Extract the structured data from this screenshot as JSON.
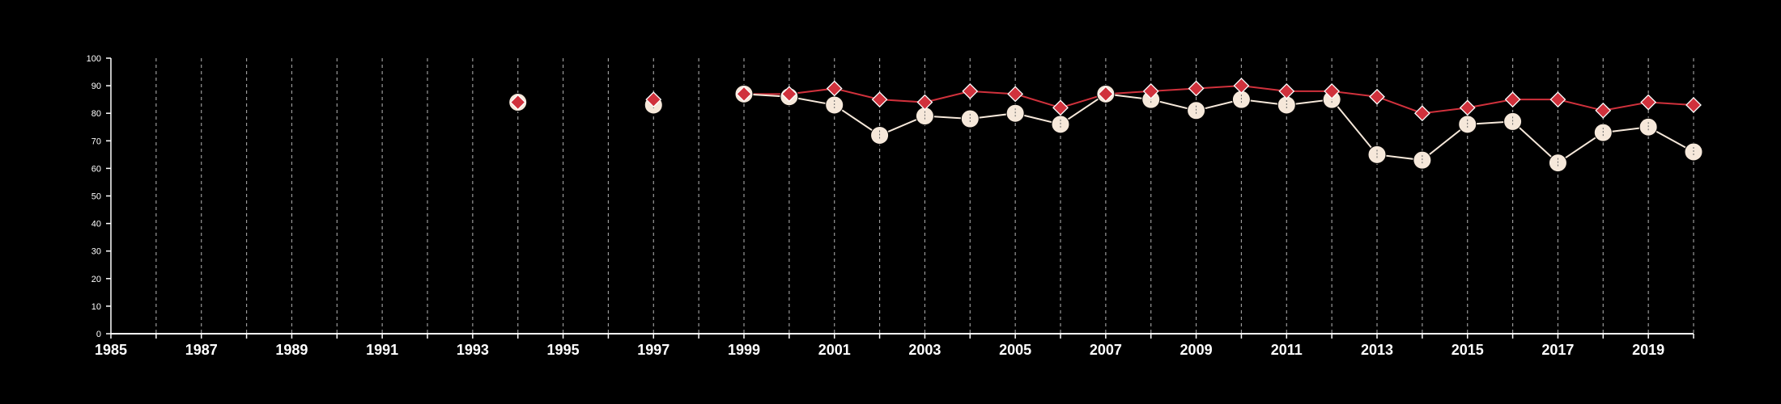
{
  "chart_data": {
    "type": "line",
    "title": "",
    "xlabel": "",
    "ylabel": "",
    "xlim": [
      1985,
      2020
    ],
    "ylim": [
      0,
      100
    ],
    "x_ticks": [
      "1985",
      "1987",
      "1989",
      "1991",
      "1993",
      "1995",
      "1997",
      "1999",
      "2001",
      "2003",
      "2005",
      "2007",
      "2009",
      "2011",
      "2013",
      "2015",
      "2017",
      "2019"
    ],
    "y_ticks": [
      "0",
      "10",
      "20",
      "30",
      "40",
      "50",
      "60",
      "70",
      "80",
      "90",
      "100"
    ],
    "grid": "vertical dashed, one per year",
    "legend": "none",
    "background": "#000000",
    "series": [
      {
        "color": "#d0313c",
        "marker": "diamond",
        "points": [
          {
            "x": 1994,
            "y": 84
          },
          {
            "x": 1997,
            "y": 85
          },
          {
            "x": 1999,
            "y": 87
          },
          {
            "x": 2000,
            "y": 87
          },
          {
            "x": 2001,
            "y": 89
          },
          {
            "x": 2002,
            "y": 85
          },
          {
            "x": 2003,
            "y": 84
          },
          {
            "x": 2004,
            "y": 88
          },
          {
            "x": 2005,
            "y": 87
          },
          {
            "x": 2006,
            "y": 82
          },
          {
            "x": 2007,
            "y": 87
          },
          {
            "x": 2008,
            "y": 88
          },
          {
            "x": 2009,
            "y": 89
          },
          {
            "x": 2010,
            "y": 90
          },
          {
            "x": 2011,
            "y": 88
          },
          {
            "x": 2012,
            "y": 88
          },
          {
            "x": 2013,
            "y": 86
          },
          {
            "x": 2014,
            "y": 80
          },
          {
            "x": 2015,
            "y": 82
          },
          {
            "x": 2016,
            "y": 85
          },
          {
            "x": 2017,
            "y": 85
          },
          {
            "x": 2018,
            "y": 81
          },
          {
            "x": 2019,
            "y": 84
          },
          {
            "x": 2020,
            "y": 83
          }
        ]
      },
      {
        "color": "#f6e8da",
        "marker": "circle",
        "points": [
          {
            "x": 1994,
            "y": 84
          },
          {
            "x": 1997,
            "y": 83
          },
          {
            "x": 1999,
            "y": 87
          },
          {
            "x": 2000,
            "y": 86
          },
          {
            "x": 2001,
            "y": 83
          },
          {
            "x": 2002,
            "y": 72
          },
          {
            "x": 2003,
            "y": 79
          },
          {
            "x": 2004,
            "y": 78
          },
          {
            "x": 2005,
            "y": 80
          },
          {
            "x": 2006,
            "y": 76
          },
          {
            "x": 2007,
            "y": 87
          },
          {
            "x": 2008,
            "y": 85
          },
          {
            "x": 2009,
            "y": 81
          },
          {
            "x": 2010,
            "y": 85
          },
          {
            "x": 2011,
            "y": 83
          },
          {
            "x": 2012,
            "y": 85
          },
          {
            "x": 2013,
            "y": 65
          },
          {
            "x": 2014,
            "y": 63
          },
          {
            "x": 2015,
            "y": 76
          },
          {
            "x": 2016,
            "y": 77
          },
          {
            "x": 2017,
            "y": 62
          },
          {
            "x": 2018,
            "y": 73
          },
          {
            "x": 2019,
            "y": 75
          },
          {
            "x": 2020,
            "y": 66
          }
        ]
      }
    ]
  }
}
